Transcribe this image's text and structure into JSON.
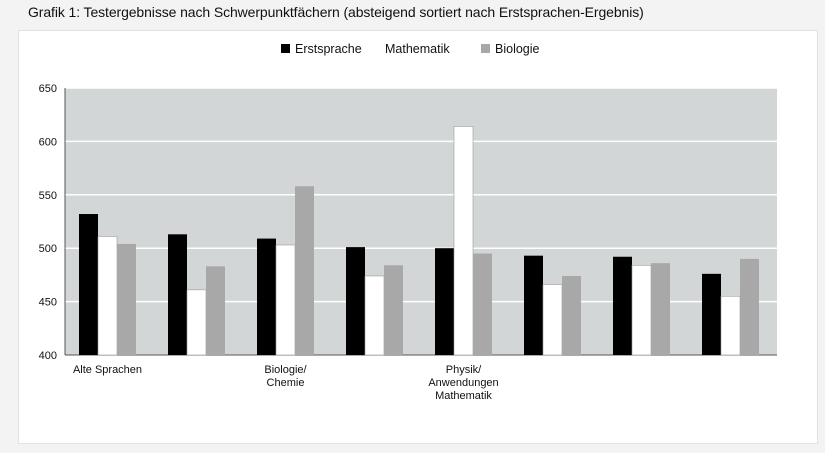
{
  "title": "Grafik 1: Testergebnisse nach Schwerpunktfächern (absteigend sortiert nach Erstsprachen-Ergebnis)",
  "colors": {
    "plot_bg": "#d3d6d6",
    "erstsprache": "#000000",
    "mathematik": "#ffffff",
    "biologie": "#a8a8a8",
    "grid": "#ffffff"
  },
  "chart_data": {
    "type": "bar",
    "title": "",
    "xlabel": "",
    "ylabel": "",
    "ylim": [
      400,
      650
    ],
    "yticks": [
      400,
      450,
      500,
      550,
      600,
      650
    ],
    "grid": true,
    "legend_position": "top",
    "categories": [
      "Alte Sprachen",
      "",
      "Biologie/\nChemie",
      "",
      "Physik/\nAnwendungen\nMathematik",
      "",
      "",
      ""
    ],
    "series": [
      {
        "name": "Erstsprache",
        "values": [
          532,
          513,
          509,
          501,
          500,
          493,
          492,
          476
        ]
      },
      {
        "name": "Mathematik",
        "values": [
          511,
          461,
          503,
          474,
          614,
          466,
          484,
          455
        ]
      },
      {
        "name": "Biologie",
        "values": [
          504,
          483,
          558,
          484,
          495,
          474,
          486,
          490
        ]
      }
    ]
  }
}
